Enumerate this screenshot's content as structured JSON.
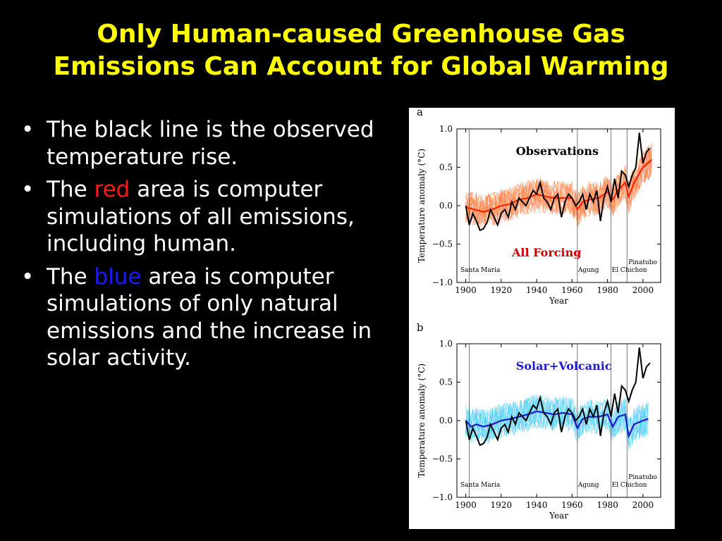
{
  "slide": {
    "title_line1": "Only Human-caused Greenhouse Gas",
    "title_line2": "Emissions Can Account for Global Warming",
    "colors": {
      "background": "#000000",
      "title": "#ffff00",
      "text": "#ffffff",
      "red": "#ff1a1a",
      "blue": "#1a1aff"
    },
    "bullets": [
      {
        "marker": "•",
        "text": "The black line is the observed temperature rise."
      },
      {
        "marker": "•",
        "prefix": "The ",
        "highlight": "red",
        "suffix": " area is computer simulations of all emissions, including human."
      },
      {
        "marker": "•",
        "prefix": "The ",
        "highlight": "blue",
        "suffix": " area is computer simulations of only natural emissions and the  increase in solar activity."
      }
    ]
  },
  "chart_data": [
    {
      "type": "line",
      "panel": "a",
      "title": "Observations",
      "xlabel": "Year",
      "ylabel": "Temperature anomaly (°C)",
      "xlim": [
        1895,
        2010
      ],
      "ylim": [
        -1.0,
        1.0
      ],
      "xticks": [
        "1900",
        "1920",
        "1940",
        "1960",
        "1980",
        "2000"
      ],
      "yticks": [
        "1.0",
        "0.5",
        "0.0",
        "−0.5",
        "−1.0"
      ],
      "label_inside": "All Forcing",
      "volcanoes": [
        {
          "name": "Santa Maria",
          "year": 1902
        },
        {
          "name": "Agung",
          "year": 1963
        },
        {
          "name": "El Chichon",
          "year": 1982
        },
        {
          "name": "Pinatubo",
          "year": 1991
        }
      ],
      "series": [
        {
          "role": "observed",
          "color": "#000000",
          "x": [
            1900,
            1902,
            1904,
            1906,
            1908,
            1910,
            1912,
            1914,
            1916,
            1918,
            1920,
            1922,
            1924,
            1926,
            1928,
            1930,
            1932,
            1934,
            1936,
            1938,
            1940,
            1942,
            1944,
            1946,
            1948,
            1950,
            1952,
            1954,
            1956,
            1958,
            1960,
            1962,
            1964,
            1966,
            1968,
            1970,
            1972,
            1974,
            1976,
            1978,
            1980,
            1982,
            1984,
            1986,
            1988,
            1990,
            1992,
            1994,
            1996,
            1998,
            2000,
            2002,
            2004
          ],
          "y": [
            0.0,
            -0.25,
            -0.1,
            -0.2,
            -0.32,
            -0.3,
            -0.22,
            -0.05,
            -0.15,
            -0.25,
            -0.1,
            -0.05,
            -0.15,
            0.05,
            -0.05,
            0.1,
            0.05,
            0.0,
            0.1,
            0.2,
            0.15,
            0.3,
            0.1,
            0.05,
            -0.05,
            0.1,
            0.15,
            -0.15,
            0.05,
            0.15,
            0.1,
            0.0,
            0.05,
            0.15,
            -0.05,
            0.15,
            0.05,
            0.2,
            -0.2,
            0.1,
            0.25,
            0.05,
            0.35,
            0.1,
            0.45,
            0.4,
            0.25,
            0.4,
            0.5,
            0.95,
            0.55,
            0.7,
            0.75
          ]
        },
        {
          "role": "model-mean",
          "color": "#ff2200",
          "x": [
            1900,
            1905,
            1910,
            1915,
            1920,
            1925,
            1930,
            1935,
            1940,
            1945,
            1950,
            1955,
            1960,
            1963,
            1966,
            1970,
            1975,
            1980,
            1983,
            1986,
            1990,
            1992,
            1995,
            2000,
            2005
          ],
          "y": [
            -0.02,
            -0.05,
            -0.08,
            -0.05,
            0.0,
            0.02,
            0.08,
            0.1,
            0.15,
            0.12,
            0.1,
            0.1,
            0.1,
            -0.05,
            0.05,
            0.08,
            0.1,
            0.18,
            0.08,
            0.2,
            0.3,
            0.12,
            0.3,
            0.5,
            0.6
          ]
        }
      ]
    },
    {
      "type": "line",
      "panel": "b",
      "xlabel": "Year",
      "ylabel": "Temperature anomaly (°C)",
      "xlim": [
        1895,
        2010
      ],
      "ylim": [
        -1.0,
        1.0
      ],
      "xticks": [
        "1900",
        "1920",
        "1940",
        "1960",
        "1980",
        "2000"
      ],
      "yticks": [
        "1.0",
        "0.5",
        "0.0",
        "−0.5",
        "−1.0"
      ],
      "label_inside": "Solar+Volcanic",
      "volcanoes": [
        {
          "name": "Santa Maria",
          "year": 1902
        },
        {
          "name": "Agung",
          "year": 1963
        },
        {
          "name": "El Chichon",
          "year": 1982
        },
        {
          "name": "Pinatubo",
          "year": 1991
        }
      ],
      "series": [
        {
          "role": "observed",
          "color": "#000000",
          "x": [
            1900,
            1902,
            1904,
            1906,
            1908,
            1910,
            1912,
            1914,
            1916,
            1918,
            1920,
            1922,
            1924,
            1926,
            1928,
            1930,
            1932,
            1934,
            1936,
            1938,
            1940,
            1942,
            1944,
            1946,
            1948,
            1950,
            1952,
            1954,
            1956,
            1958,
            1960,
            1962,
            1964,
            1966,
            1968,
            1970,
            1972,
            1974,
            1976,
            1978,
            1980,
            1982,
            1984,
            1986,
            1988,
            1990,
            1992,
            1994,
            1996,
            1998,
            2000,
            2002,
            2004
          ],
          "y": [
            0.0,
            -0.25,
            -0.1,
            -0.2,
            -0.32,
            -0.3,
            -0.22,
            -0.05,
            -0.15,
            -0.25,
            -0.1,
            -0.05,
            -0.15,
            0.05,
            -0.05,
            0.1,
            0.05,
            0.0,
            0.1,
            0.2,
            0.15,
            0.3,
            0.1,
            0.05,
            -0.05,
            0.1,
            0.15,
            -0.15,
            0.05,
            0.15,
            0.1,
            0.0,
            0.05,
            0.15,
            -0.05,
            0.15,
            0.05,
            0.2,
            -0.2,
            0.1,
            0.25,
            0.05,
            0.35,
            0.1,
            0.45,
            0.4,
            0.25,
            0.4,
            0.5,
            0.95,
            0.55,
            0.7,
            0.75
          ]
        },
        {
          "role": "model-mean",
          "color": "#1a1acc",
          "x": [
            1900,
            1903,
            1906,
            1910,
            1915,
            1920,
            1925,
            1930,
            1935,
            1940,
            1945,
            1950,
            1955,
            1960,
            1963,
            1966,
            1970,
            1975,
            1980,
            1983,
            1986,
            1990,
            1992,
            1995,
            2000,
            2003
          ],
          "y": [
            0.0,
            -0.08,
            -0.05,
            -0.08,
            -0.05,
            0.0,
            0.02,
            0.05,
            0.08,
            0.12,
            0.1,
            0.08,
            0.1,
            0.08,
            -0.1,
            0.02,
            0.05,
            0.05,
            0.08,
            -0.08,
            0.05,
            0.08,
            -0.2,
            -0.05,
            0.0,
            0.02
          ]
        }
      ]
    }
  ]
}
